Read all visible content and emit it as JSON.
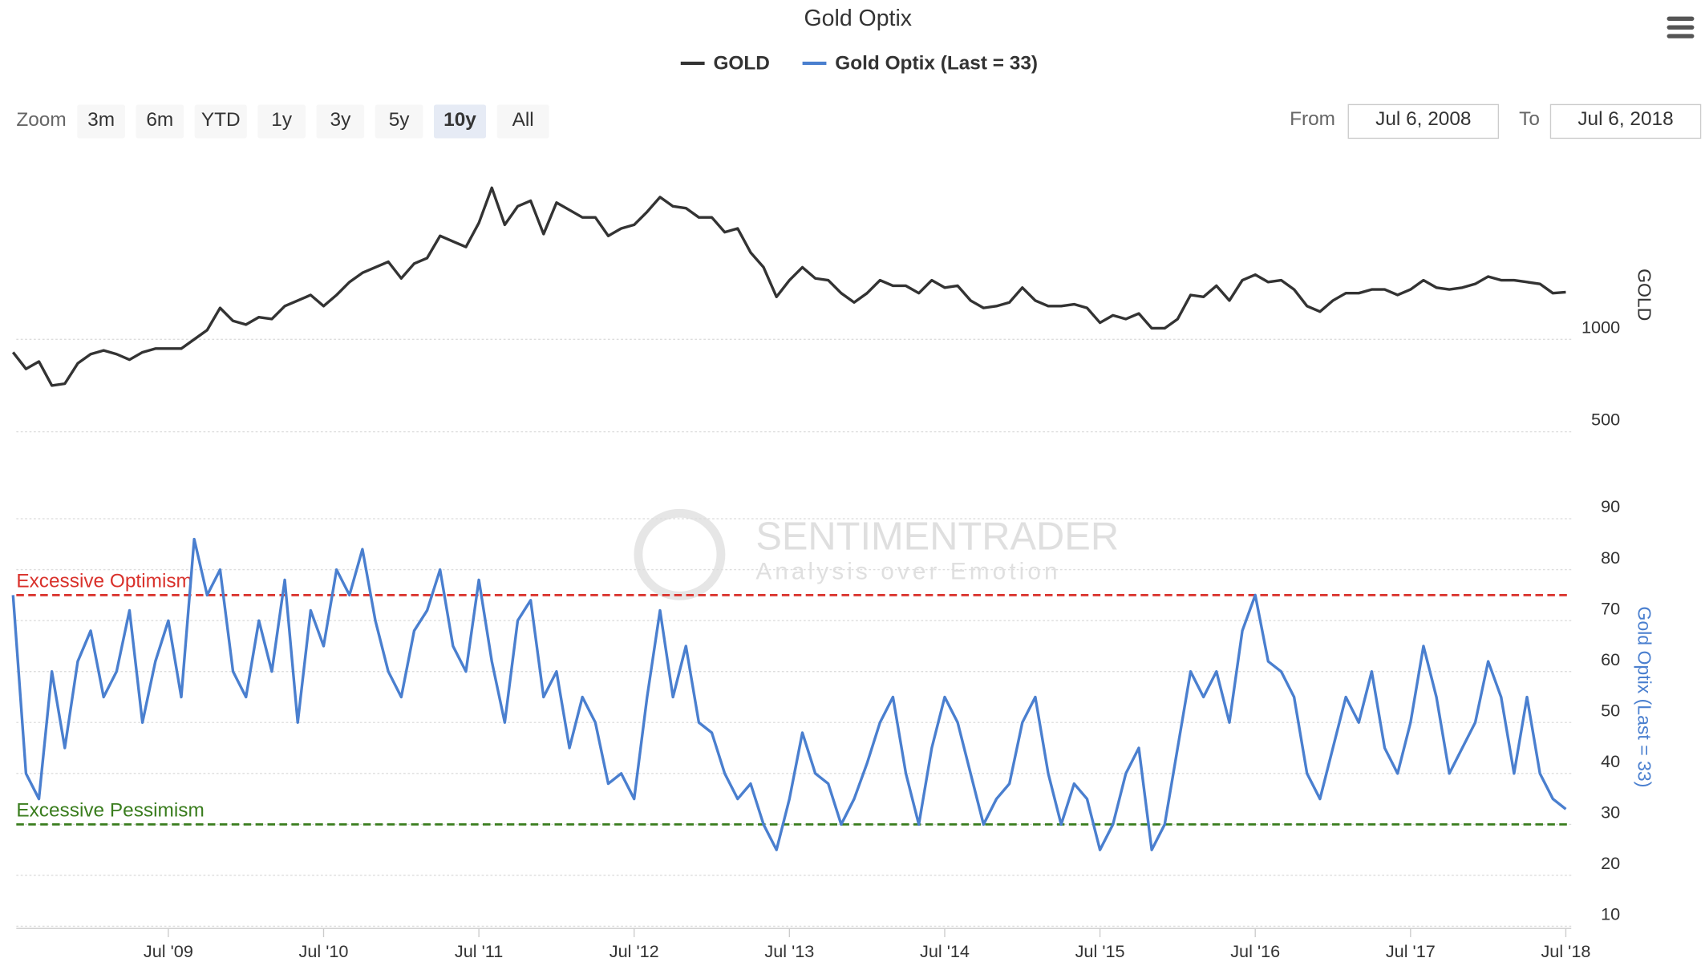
{
  "title": "Gold Optix",
  "range_selector": {
    "zoom_label": "Zoom",
    "buttons": [
      "3m",
      "6m",
      "YTD",
      "1y",
      "3y",
      "5y",
      "10y",
      "All"
    ],
    "selected": 6,
    "from_label": "From",
    "from": "Jul 6, 2008",
    "to_label": "To",
    "to": "Jul 6, 2018"
  },
  "watermark": {
    "name": "SENTIMENTRADER",
    "tagline": "Analysis over Emotion"
  },
  "chart_data": [
    {
      "type": "line",
      "ylabel": "GOLD",
      "ylim": [
        300,
        2000
      ],
      "yticks": [
        500,
        1000
      ],
      "grid": true,
      "series": [
        {
          "name": "GOLD",
          "color": "#333333",
          "values": [
            930,
            840,
            880,
            750,
            760,
            870,
            920,
            940,
            920,
            890,
            930,
            950,
            950,
            950,
            1000,
            1050,
            1170,
            1100,
            1080,
            1120,
            1110,
            1180,
            1210,
            1240,
            1180,
            1240,
            1310,
            1360,
            1390,
            1420,
            1330,
            1410,
            1440,
            1560,
            1530,
            1500,
            1630,
            1820,
            1620,
            1720,
            1750,
            1570,
            1740,
            1700,
            1660,
            1660,
            1560,
            1600,
            1620,
            1690,
            1770,
            1720,
            1710,
            1660,
            1660,
            1580,
            1600,
            1470,
            1390,
            1230,
            1320,
            1390,
            1330,
            1320,
            1250,
            1200,
            1250,
            1320,
            1290,
            1290,
            1250,
            1320,
            1280,
            1290,
            1210,
            1170,
            1180,
            1200,
            1280,
            1210,
            1180,
            1180,
            1190,
            1170,
            1090,
            1130,
            1110,
            1140,
            1060,
            1060,
            1110,
            1240,
            1230,
            1290,
            1210,
            1320,
            1350,
            1310,
            1320,
            1270,
            1180,
            1150,
            1210,
            1250,
            1250,
            1270,
            1270,
            1240,
            1270,
            1320,
            1280,
            1270,
            1280,
            1300,
            1340,
            1320,
            1320,
            1310,
            1300,
            1250,
            1255
          ]
        }
      ]
    },
    {
      "type": "line",
      "ylabel": "Gold Optix (Last = 33)",
      "ylim": [
        10,
        90
      ],
      "yticks": [
        10,
        20,
        30,
        40,
        50,
        60,
        70,
        80,
        90
      ],
      "grid": true,
      "x": [
        "2008-07",
        "2008-08",
        "2008-09",
        "2008-10",
        "2008-11",
        "2008-12",
        "2009-01",
        "2009-02",
        "2009-03",
        "2009-04",
        "2009-05",
        "2009-06",
        "2009-07",
        "2009-08",
        "2009-09",
        "2009-10",
        "2009-11",
        "2009-12",
        "2010-01",
        "2010-02",
        "2010-03",
        "2010-04",
        "2010-05",
        "2010-06",
        "2010-07",
        "2010-08",
        "2010-09",
        "2010-10",
        "2010-11",
        "2010-12",
        "2011-01",
        "2011-02",
        "2011-03",
        "2011-04",
        "2011-05",
        "2011-06",
        "2011-07",
        "2011-08",
        "2011-09",
        "2011-10",
        "2011-11",
        "2011-12",
        "2012-01",
        "2012-02",
        "2012-03",
        "2012-04",
        "2012-05",
        "2012-06",
        "2012-07",
        "2012-08",
        "2012-09",
        "2012-10",
        "2012-11",
        "2012-12",
        "2013-01",
        "2013-02",
        "2013-03",
        "2013-04",
        "2013-05",
        "2013-06",
        "2013-07",
        "2013-08",
        "2013-09",
        "2013-10",
        "2013-11",
        "2013-12",
        "2014-01",
        "2014-02",
        "2014-03",
        "2014-04",
        "2014-05",
        "2014-06",
        "2014-07",
        "2014-08",
        "2014-09",
        "2014-10",
        "2014-11",
        "2014-12",
        "2015-01",
        "2015-02",
        "2015-03",
        "2015-04",
        "2015-05",
        "2015-06",
        "2015-07",
        "2015-08",
        "2015-09",
        "2015-10",
        "2015-11",
        "2015-12",
        "2016-01",
        "2016-02",
        "2016-03",
        "2016-04",
        "2016-05",
        "2016-06",
        "2016-07",
        "2016-08",
        "2016-09",
        "2016-10",
        "2016-11",
        "2016-12",
        "2017-01",
        "2017-02",
        "2017-03",
        "2017-04",
        "2017-05",
        "2017-06",
        "2017-07",
        "2017-08",
        "2017-09",
        "2017-10",
        "2017-11",
        "2017-12",
        "2018-01",
        "2018-02",
        "2018-03",
        "2018-04",
        "2018-05",
        "2018-06",
        "2018-07"
      ],
      "xticks": [
        {
          "value": "2009-07",
          "label": "Jul '09"
        },
        {
          "value": "2010-07",
          "label": "Jul '10"
        },
        {
          "value": "2011-07",
          "label": "Jul '11"
        },
        {
          "value": "2012-07",
          "label": "Jul '12"
        },
        {
          "value": "2013-07",
          "label": "Jul '13"
        },
        {
          "value": "2014-07",
          "label": "Jul '14"
        },
        {
          "value": "2015-07",
          "label": "Jul '15"
        },
        {
          "value": "2016-07",
          "label": "Jul '16"
        },
        {
          "value": "2017-07",
          "label": "Jul '17"
        },
        {
          "value": "2018-07",
          "label": "Jul '18"
        }
      ],
      "reference_lines": [
        {
          "label": "Excessive Optimism",
          "value": 75,
          "color": "#d9312b"
        },
        {
          "label": "Excessive Pessimism",
          "value": 30,
          "color": "#3a7d1e"
        }
      ],
      "series": [
        {
          "name": "Gold Optix (Last = 33)",
          "color": "#4a7fcf",
          "values": [
            75,
            40,
            35,
            60,
            45,
            62,
            68,
            55,
            60,
            72,
            50,
            62,
            70,
            55,
            86,
            75,
            80,
            60,
            55,
            70,
            60,
            78,
            50,
            72,
            65,
            80,
            75,
            84,
            70,
            60,
            55,
            68,
            72,
            80,
            65,
            60,
            78,
            62,
            50,
            70,
            74,
            55,
            60,
            45,
            55,
            50,
            38,
            40,
            35,
            55,
            72,
            55,
            65,
            50,
            48,
            40,
            35,
            38,
            30,
            25,
            35,
            48,
            40,
            38,
            30,
            35,
            42,
            50,
            55,
            40,
            30,
            45,
            55,
            50,
            40,
            30,
            35,
            38,
            50,
            55,
            40,
            30,
            38,
            35,
            25,
            30,
            40,
            45,
            25,
            30,
            45,
            60,
            55,
            60,
            50,
            68,
            75,
            62,
            60,
            55,
            40,
            35,
            45,
            55,
            50,
            60,
            45,
            40,
            50,
            65,
            55,
            40,
            45,
            50,
            62,
            55,
            40,
            55,
            40,
            35,
            33
          ]
        }
      ]
    }
  ]
}
